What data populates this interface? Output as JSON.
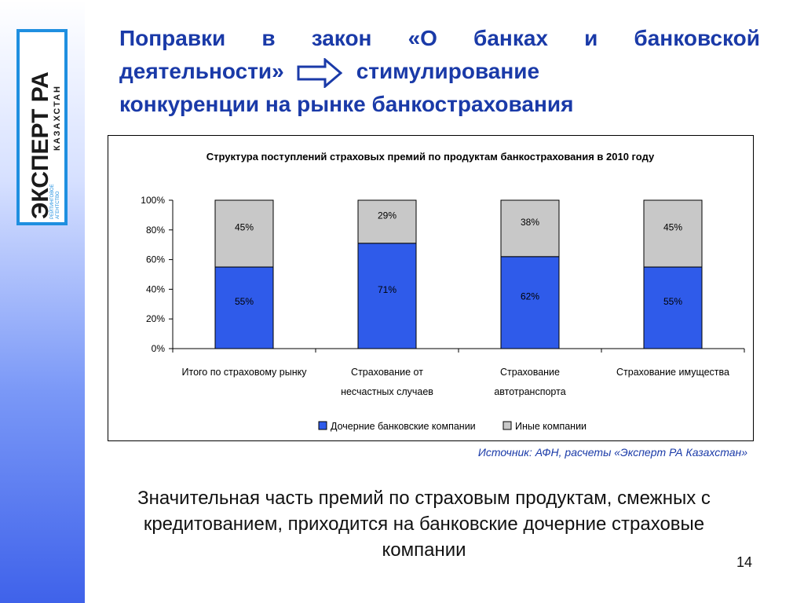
{
  "logo": {
    "main_text": "ЭКСПЕРТ РА",
    "side_text": "КАЗАХСТАН",
    "small_text_1": "РЕЙТИНГОВОЕ",
    "small_text_2": "АГЕНТСТВО",
    "colors": {
      "frame": "#1f8fe0",
      "text": "#1a1a1a",
      "accent": "#1f8fe0"
    }
  },
  "title": {
    "line1": "Поправки в закон «О банках и банковской",
    "line2_left": "деятельности»",
    "line2_right": "стимулирование",
    "line3": "конкуренции на рынке банкострахования",
    "arrow_icon": "right-arrow-icon",
    "color": "#1a3aa8"
  },
  "chart_data": {
    "type": "bar",
    "stacked": true,
    "title": "Структура поступлений страховых премий по продуктам банкострахования в 2010 году",
    "categories": [
      [
        "Итого по страховому рынку"
      ],
      [
        "Страхование от",
        "несчастных случаев"
      ],
      [
        "Страхование",
        "автотранспорта"
      ],
      [
        "Страхование имущества"
      ]
    ],
    "series": [
      {
        "name": "Дочерние банковские компании",
        "values": [
          55,
          71,
          62,
          55
        ],
        "labels": [
          "55%",
          "71%",
          "62%",
          "55%"
        ],
        "color": "#2f5bea"
      },
      {
        "name": "Иные компании",
        "values": [
          45,
          29,
          38,
          45
        ],
        "labels": [
          "45%",
          "29%",
          "38%",
          "45%"
        ],
        "color": "#c8c8c8"
      }
    ],
    "y_ticks": [
      "0%",
      "20%",
      "40%",
      "60%",
      "80%",
      "100%"
    ],
    "ylim": [
      0,
      100
    ],
    "grid": false,
    "legend_position": "bottom"
  },
  "source": "Источник: АФН, расчеты «Эксперт РА Казахстан»",
  "conclusion": "Значительная часть премий по страховым продуктам, смежных с кредитованием, приходится на банковские дочерние страховые компании",
  "page_number": "14"
}
